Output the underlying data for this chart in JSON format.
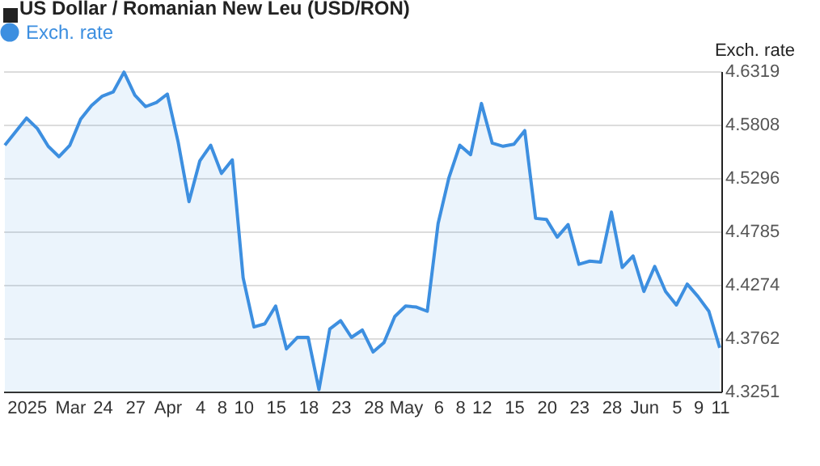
{
  "chart_data": {
    "type": "area",
    "title": "US Dollar / Romanian New Leu (USD/RON)",
    "ylabel": "Exch. rate",
    "categories": [
      null,
      null,
      "2025",
      null,
      null,
      null,
      "Mar",
      null,
      null,
      "24",
      null,
      null,
      "27",
      null,
      null,
      "Apr",
      null,
      null,
      "4",
      null,
      "8",
      null,
      "10",
      null,
      null,
      "15",
      null,
      null,
      "18",
      null,
      null,
      "23",
      null,
      null,
      "28",
      null,
      null,
      "May",
      null,
      null,
      "6",
      null,
      "8",
      null,
      "12",
      null,
      null,
      "15",
      null,
      null,
      "20",
      null,
      null,
      "23",
      null,
      null,
      "28",
      null,
      null,
      "Jun",
      null,
      null,
      "5",
      null,
      "9",
      null,
      "11"
    ],
    "series": [
      {
        "name": "Exch. rate",
        "color": "#3d8fe0",
        "values": [
          4.561,
          4.574,
          4.587,
          4.577,
          4.56,
          4.55,
          4.561,
          4.586,
          4.599,
          4.608,
          4.612,
          4.631,
          4.609,
          4.598,
          4.602,
          4.61,
          4.564,
          4.507,
          4.546,
          4.561,
          4.534,
          4.547,
          4.434,
          4.387,
          4.39,
          4.407,
          4.366,
          4.377,
          4.377,
          4.327,
          4.385,
          4.393,
          4.377,
          4.384,
          4.363,
          4.372,
          4.397,
          4.407,
          4.406,
          4.402,
          4.486,
          4.53,
          4.561,
          4.552,
          4.601,
          4.563,
          4.56,
          4.562,
          4.575,
          4.491,
          4.49,
          4.473,
          4.485,
          4.447,
          4.45,
          4.449,
          4.497,
          4.444,
          4.455,
          4.421,
          4.445,
          4.421,
          4.408,
          4.428,
          4.416,
          4.402,
          4.367
        ]
      }
    ],
    "ylim": [
      4.3251,
      4.6319
    ],
    "yticks": [
      4.3251,
      4.3762,
      4.4274,
      4.4785,
      4.5296,
      4.5808,
      4.6319
    ],
    "grid": "y",
    "legend": "top left"
  }
}
